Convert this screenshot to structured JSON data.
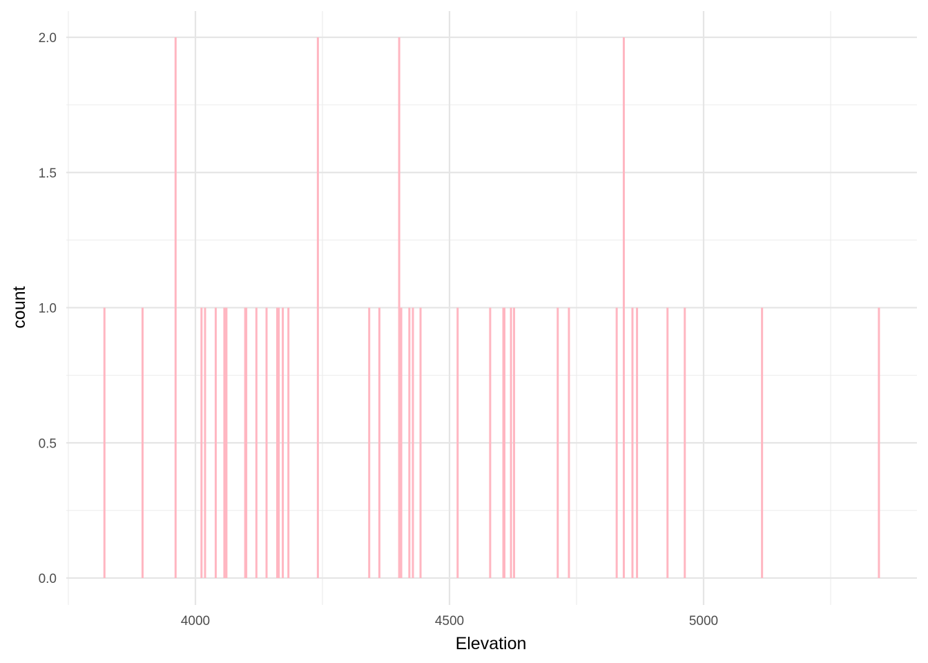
{
  "chart_data": {
    "type": "bar",
    "xlabel": "Elevation",
    "ylabel": "count",
    "xlim": [
      3750,
      5425
    ],
    "ylim": [
      0,
      2.0
    ],
    "x_ticks": [
      4000,
      4500,
      5000
    ],
    "x_tick_labels": [
      "4000",
      "4500",
      "5000"
    ],
    "y_ticks": [
      0,
      0.5,
      1.0,
      1.5,
      2.0
    ],
    "y_tick_labels": [
      "0.0",
      "0.5",
      "1.0",
      "1.5",
      "2.0"
    ],
    "grid": true,
    "bar_color": "#FFB6C1",
    "bars": [
      {
        "x": 3821,
        "count": 1
      },
      {
        "x": 3896,
        "count": 1
      },
      {
        "x": 3961,
        "count": 2
      },
      {
        "x": 4012,
        "count": 1
      },
      {
        "x": 4019,
        "count": 1
      },
      {
        "x": 4040,
        "count": 1
      },
      {
        "x": 4057,
        "count": 1
      },
      {
        "x": 4061,
        "count": 1
      },
      {
        "x": 4098,
        "count": 1
      },
      {
        "x": 4100,
        "count": 1
      },
      {
        "x": 4120,
        "count": 1
      },
      {
        "x": 4140,
        "count": 1
      },
      {
        "x": 4161,
        "count": 1
      },
      {
        "x": 4164,
        "count": 1
      },
      {
        "x": 4172,
        "count": 1
      },
      {
        "x": 4183,
        "count": 1
      },
      {
        "x": 4241,
        "count": 2
      },
      {
        "x": 4342,
        "count": 1
      },
      {
        "x": 4362,
        "count": 1
      },
      {
        "x": 4401,
        "count": 2
      },
      {
        "x": 4405,
        "count": 1
      },
      {
        "x": 4421,
        "count": 1
      },
      {
        "x": 4428,
        "count": 1
      },
      {
        "x": 4443,
        "count": 1
      },
      {
        "x": 4516,
        "count": 1
      },
      {
        "x": 4580,
        "count": 1
      },
      {
        "x": 4606,
        "count": 1
      },
      {
        "x": 4608,
        "count": 1
      },
      {
        "x": 4621,
        "count": 1
      },
      {
        "x": 4627,
        "count": 1
      },
      {
        "x": 4713,
        "count": 1
      },
      {
        "x": 4735,
        "count": 1
      },
      {
        "x": 4829,
        "count": 1
      },
      {
        "x": 4843,
        "count": 2
      },
      {
        "x": 4860,
        "count": 1
      },
      {
        "x": 4869,
        "count": 1
      },
      {
        "x": 4929,
        "count": 1
      },
      {
        "x": 4963,
        "count": 1
      },
      {
        "x": 5115,
        "count": 1
      },
      {
        "x": 5345,
        "count": 1
      }
    ]
  }
}
